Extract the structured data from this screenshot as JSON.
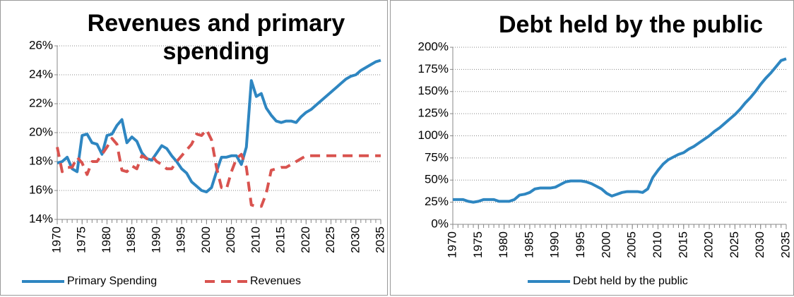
{
  "chart_data": [
    {
      "type": "line",
      "title": "Revenues and primary spending",
      "x": [
        1970,
        1971,
        1972,
        1973,
        1974,
        1975,
        1976,
        1977,
        1978,
        1979,
        1980,
        1981,
        1982,
        1983,
        1984,
        1985,
        1986,
        1987,
        1988,
        1989,
        1990,
        1991,
        1992,
        1993,
        1994,
        1995,
        1996,
        1997,
        1998,
        1999,
        2000,
        2001,
        2002,
        2003,
        2004,
        2005,
        2006,
        2007,
        2008,
        2009,
        2010,
        2011,
        2012,
        2013,
        2014,
        2015,
        2016,
        2017,
        2018,
        2019,
        2020,
        2021,
        2022,
        2023,
        2024,
        2025,
        2026,
        2027,
        2028,
        2029,
        2030,
        2031,
        2032,
        2033,
        2034,
        2035
      ],
      "series": [
        {
          "name": "Primary Spending",
          "color": "#2e86c1",
          "dash": false,
          "values": [
            17.9,
            18.0,
            18.3,
            17.5,
            17.3,
            19.8,
            19.9,
            19.3,
            19.2,
            18.5,
            19.8,
            19.9,
            20.5,
            20.9,
            19.3,
            19.7,
            19.4,
            18.6,
            18.2,
            18.1,
            18.6,
            19.1,
            18.9,
            18.4,
            18.0,
            17.5,
            17.2,
            16.6,
            16.3,
            16.0,
            15.9,
            16.2,
            17.3,
            18.3,
            18.3,
            18.4,
            18.4,
            17.8,
            19.0,
            23.6,
            22.5,
            22.7,
            21.7,
            21.2,
            20.8,
            20.7,
            20.8,
            20.8,
            20.7,
            21.1,
            21.4,
            21.6,
            21.9,
            22.2,
            22.5,
            22.8,
            23.1,
            23.4,
            23.7,
            23.9,
            24.0,
            24.3,
            24.5,
            24.7,
            24.9,
            25.0
          ]
        },
        {
          "name": "Revenues",
          "color": "#d9534f",
          "dash": true,
          "values": [
            19.0,
            17.3,
            17.6,
            17.6,
            18.3,
            17.9,
            17.1,
            18.0,
            18.0,
            18.5,
            19.0,
            19.6,
            19.2,
            17.4,
            17.3,
            17.7,
            17.5,
            18.4,
            18.2,
            18.4,
            18.0,
            17.8,
            17.5,
            17.5,
            18.0,
            18.4,
            18.8,
            19.2,
            19.9,
            19.8,
            20.2,
            19.5,
            17.6,
            16.2,
            16.1,
            17.3,
            18.2,
            18.5,
            17.6,
            15.0,
            14.9,
            14.9,
            15.8,
            17.4,
            17.5,
            17.6,
            17.6,
            17.8,
            18.0,
            18.2,
            18.4,
            18.4,
            18.4,
            18.4,
            18.4,
            18.4,
            18.4,
            18.4,
            18.4,
            18.4,
            18.4,
            18.4,
            18.4,
            18.4,
            18.4,
            18.4
          ]
        }
      ],
      "xlim": [
        1970,
        2035
      ],
      "xticks": [
        1970,
        1975,
        1980,
        1985,
        1990,
        1995,
        2000,
        2005,
        2010,
        2015,
        2020,
        2025,
        2030,
        2035
      ],
      "ylim": [
        14,
        26
      ],
      "yticks": [
        {
          "value": 14,
          "label": "14%"
        },
        {
          "value": 16,
          "label": "16%"
        },
        {
          "value": 18,
          "label": "18%"
        },
        {
          "value": 20,
          "label": "20%"
        },
        {
          "value": 22,
          "label": "22%"
        },
        {
          "value": 24,
          "label": "24%"
        },
        {
          "value": 26,
          "label": "26%"
        }
      ],
      "grid": true,
      "legend": "bottom"
    },
    {
      "type": "line",
      "title": "Debt held by the public",
      "x": [
        1970,
        1971,
        1972,
        1973,
        1974,
        1975,
        1976,
        1977,
        1978,
        1979,
        1980,
        1981,
        1982,
        1983,
        1984,
        1985,
        1986,
        1987,
        1988,
        1989,
        1990,
        1991,
        1992,
        1993,
        1994,
        1995,
        1996,
        1997,
        1998,
        1999,
        2000,
        2001,
        2002,
        2003,
        2004,
        2005,
        2006,
        2007,
        2008,
        2009,
        2010,
        2011,
        2012,
        2013,
        2014,
        2015,
        2016,
        2017,
        2018,
        2019,
        2020,
        2021,
        2022,
        2023,
        2024,
        2025,
        2026,
        2027,
        2028,
        2029,
        2030,
        2031,
        2032,
        2033,
        2034,
        2035
      ],
      "series": [
        {
          "name": "Debt held by the public",
          "color": "#2e86c1",
          "dash": false,
          "values": [
            28,
            28,
            28,
            26,
            25,
            26,
            28,
            28,
            28,
            26,
            26,
            26,
            28,
            33,
            34,
            36,
            40,
            41,
            41,
            41,
            42,
            45,
            48,
            49,
            49,
            49,
            48,
            46,
            43,
            40,
            35,
            32,
            34,
            36,
            37,
            37,
            37,
            36,
            40,
            53,
            61,
            68,
            73,
            76,
            79,
            81,
            85,
            88,
            92,
            96,
            100,
            105,
            109,
            114,
            119,
            124,
            130,
            137,
            143,
            150,
            158,
            165,
            171,
            178,
            185,
            187
          ]
        }
      ],
      "xlim": [
        1970,
        2035
      ],
      "xticks": [
        1970,
        1975,
        1980,
        1985,
        1990,
        1995,
        2000,
        2005,
        2010,
        2015,
        2020,
        2025,
        2030,
        2035
      ],
      "ylim": [
        0,
        200
      ],
      "yticks": [
        {
          "value": 0,
          "label": "0%"
        },
        {
          "value": 25,
          "label": "25%"
        },
        {
          "value": 50,
          "label": "50%"
        },
        {
          "value": 75,
          "label": "75%"
        },
        {
          "value": 100,
          "label": "100%"
        },
        {
          "value": 125,
          "label": "125%"
        },
        {
          "value": 150,
          "label": "150%"
        },
        {
          "value": 175,
          "label": "175%"
        },
        {
          "value": 200,
          "label": "200%"
        }
      ],
      "grid": true,
      "legend": "bottom"
    }
  ]
}
